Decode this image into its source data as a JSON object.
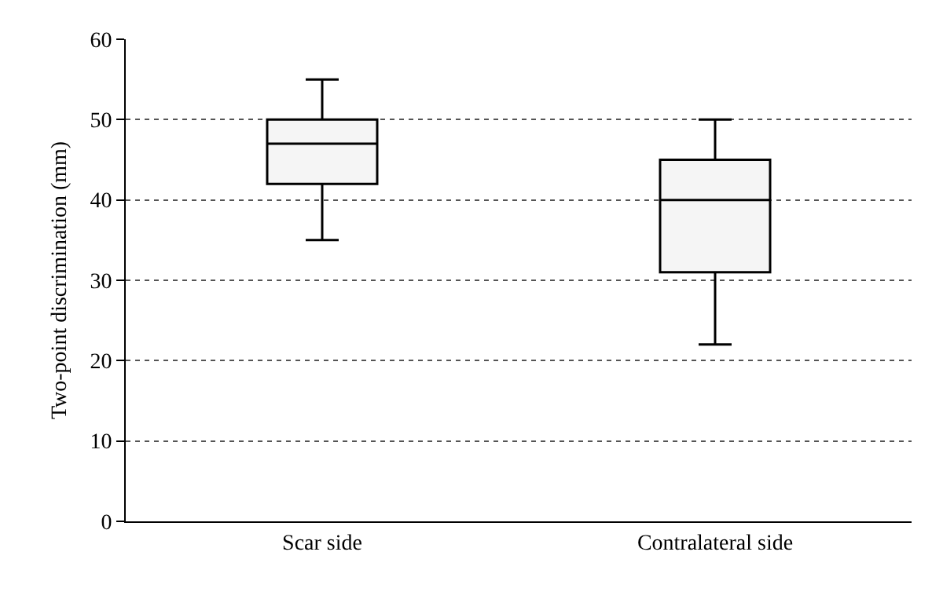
{
  "chart_data": {
    "type": "box",
    "ylabel": "Two-point discrimination (mm)",
    "categories": [
      "Scar side",
      "Contralateral side"
    ],
    "boxes": [
      {
        "low": 35,
        "q1": 42,
        "median": 47,
        "q3": 50,
        "high": 55
      },
      {
        "low": 22,
        "q1": 31,
        "median": 40,
        "q3": 45,
        "high": 50
      }
    ],
    "color": "#f5f5f5",
    "ylim": [
      0,
      60
    ],
    "yticks": [
      0,
      10,
      20,
      30,
      40,
      50,
      60
    ],
    "grid": "y"
  }
}
